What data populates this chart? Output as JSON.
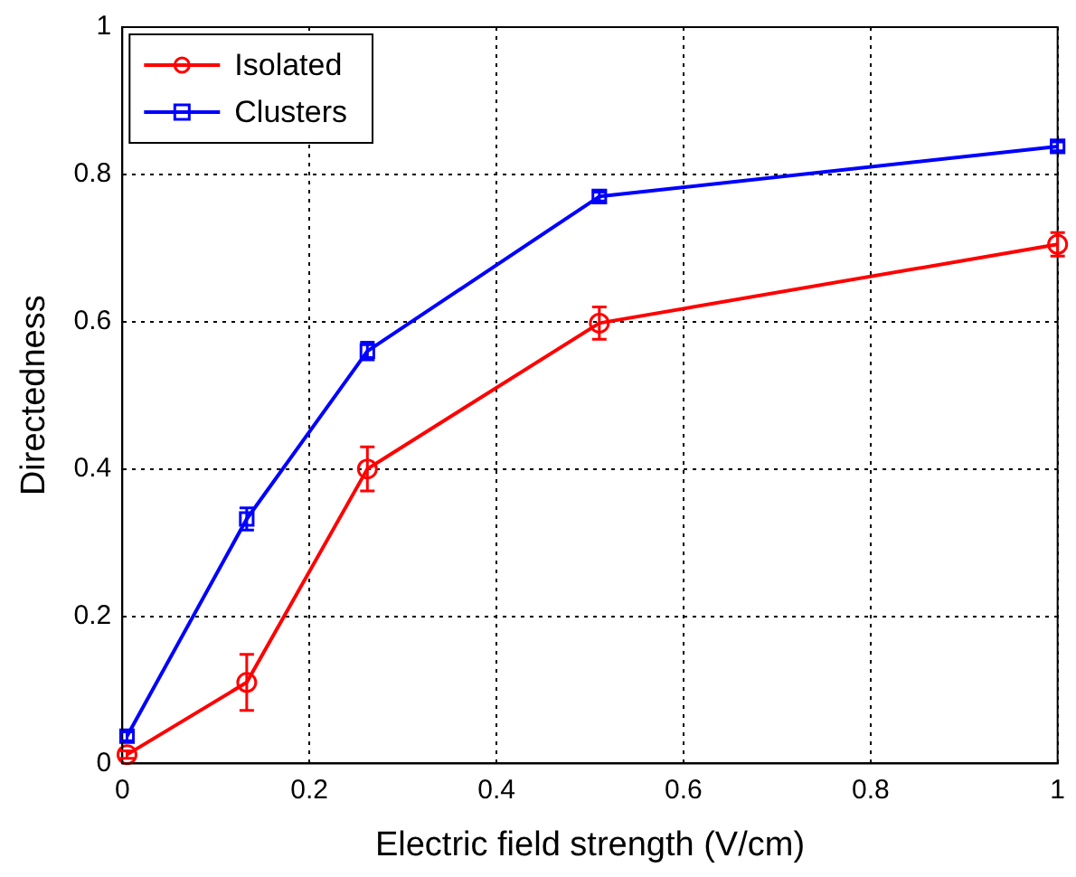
{
  "chart_data": {
    "type": "line",
    "xlabel": "Electric field strength (V/cm)",
    "ylabel": "Directedness",
    "xlim": [
      0,
      1
    ],
    "xticks": [
      0,
      0.2,
      0.4,
      0.6,
      0.8,
      1
    ],
    "ylim": [
      0,
      1
    ],
    "yticks": [
      0,
      0.2,
      0.4,
      0.6,
      0.8,
      1
    ],
    "grid": true,
    "legend": "top left",
    "line_style": "solid",
    "series": [
      {
        "name": "Isolated",
        "color": "#ff0000",
        "marker": "circle",
        "x": [
          0.005,
          0.133,
          0.262,
          0.51,
          1
        ],
        "values": [
          0.012,
          0.11,
          0.4,
          0.598,
          0.705
        ],
        "errors": [
          0.005,
          0.038,
          0.03,
          0.022,
          0.016
        ]
      },
      {
        "name": "Clusters",
        "color": "#0000ff",
        "marker": "square",
        "x": [
          0.005,
          0.133,
          0.262,
          0.51,
          1
        ],
        "values": [
          0.037,
          0.332,
          0.56,
          0.77,
          0.838
        ],
        "errors": [
          0.006,
          0.015,
          0.012,
          0.006,
          0.006
        ]
      }
    ]
  }
}
